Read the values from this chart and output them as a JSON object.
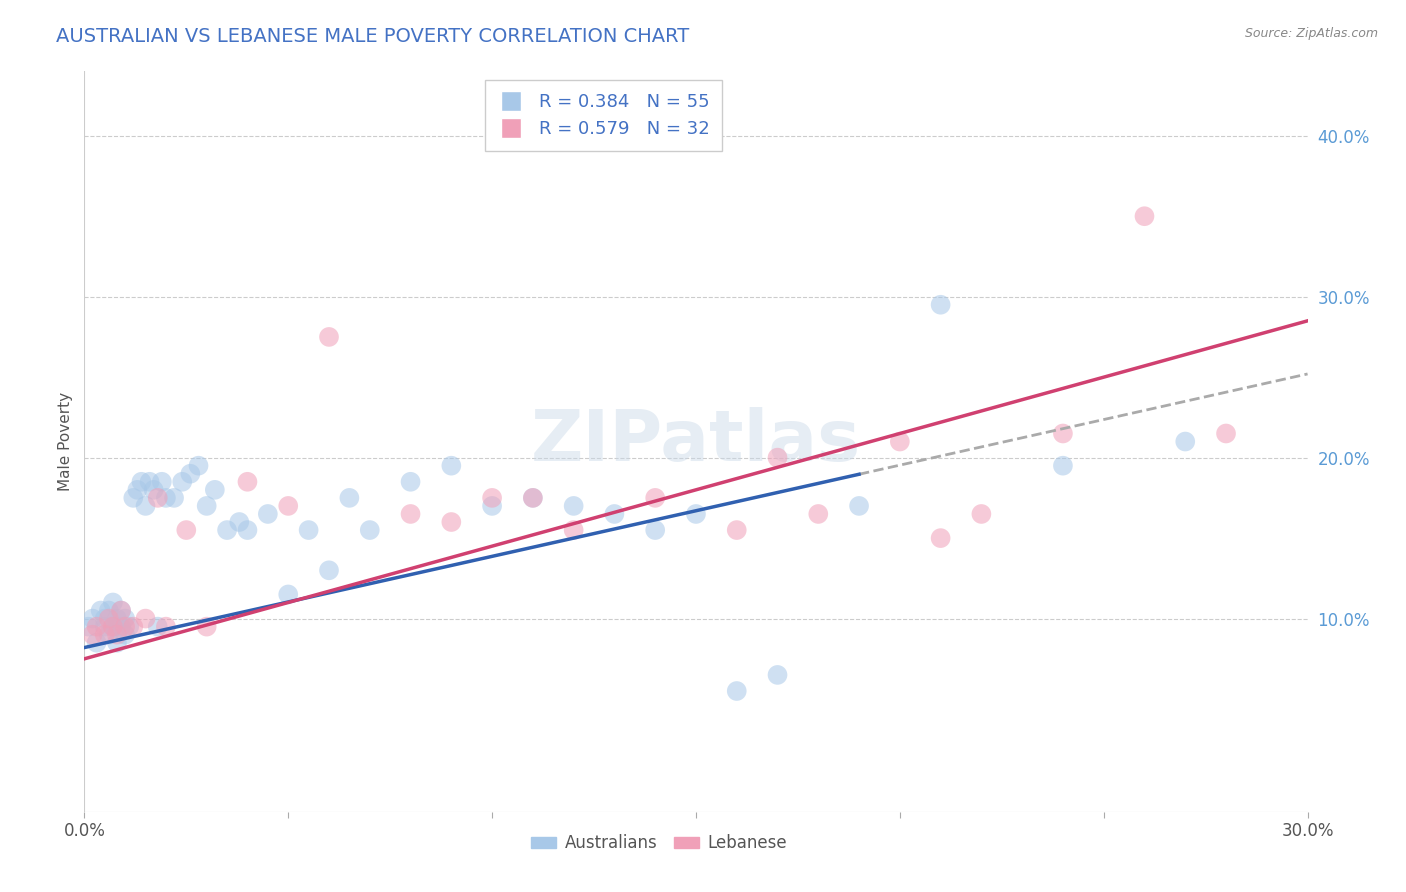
{
  "title": "AUSTRALIAN VS LEBANESE MALE POVERTY CORRELATION CHART",
  "source": "Source: ZipAtlas.com",
  "ylabel": "Male Poverty",
  "xlim": [
    0.0,
    0.3
  ],
  "ylim": [
    -0.02,
    0.44
  ],
  "yticks": [
    0.1,
    0.2,
    0.3,
    0.4
  ],
  "ytick_labels": [
    "10.0%",
    "20.0%",
    "30.0%",
    "40.0%"
  ],
  "color_australian": "#a8c8e8",
  "color_lebanese": "#f0a0b8",
  "color_aus_line": "#3060b0",
  "color_leb_line": "#d04070",
  "color_dash": "#aaaaaa",
  "background_color": "#ffffff",
  "watermark": "ZIPatlas",
  "aus_x": [
    0.001,
    0.002,
    0.003,
    0.004,
    0.005,
    0.005,
    0.006,
    0.006,
    0.007,
    0.007,
    0.008,
    0.008,
    0.009,
    0.009,
    0.01,
    0.01,
    0.011,
    0.012,
    0.013,
    0.014,
    0.015,
    0.016,
    0.017,
    0.018,
    0.019,
    0.02,
    0.022,
    0.024,
    0.026,
    0.028,
    0.03,
    0.032,
    0.035,
    0.038,
    0.04,
    0.045,
    0.05,
    0.055,
    0.06,
    0.065,
    0.07,
    0.08,
    0.09,
    0.1,
    0.11,
    0.12,
    0.13,
    0.14,
    0.15,
    0.16,
    0.17,
    0.19,
    0.21,
    0.24,
    0.27
  ],
  "aus_y": [
    0.095,
    0.1,
    0.085,
    0.105,
    0.095,
    0.1,
    0.09,
    0.105,
    0.095,
    0.11,
    0.085,
    0.1,
    0.095,
    0.105,
    0.09,
    0.1,
    0.095,
    0.175,
    0.18,
    0.185,
    0.17,
    0.185,
    0.18,
    0.095,
    0.185,
    0.175,
    0.175,
    0.185,
    0.19,
    0.195,
    0.17,
    0.18,
    0.155,
    0.16,
    0.155,
    0.165,
    0.115,
    0.155,
    0.13,
    0.175,
    0.155,
    0.185,
    0.195,
    0.17,
    0.175,
    0.17,
    0.165,
    0.155,
    0.165,
    0.055,
    0.065,
    0.17,
    0.295,
    0.195,
    0.21
  ],
  "leb_x": [
    0.002,
    0.003,
    0.005,
    0.006,
    0.007,
    0.008,
    0.009,
    0.01,
    0.012,
    0.015,
    0.018,
    0.02,
    0.025,
    0.03,
    0.04,
    0.05,
    0.06,
    0.08,
    0.09,
    0.1,
    0.11,
    0.12,
    0.14,
    0.16,
    0.17,
    0.18,
    0.2,
    0.21,
    0.22,
    0.24,
    0.26,
    0.28
  ],
  "leb_y": [
    0.09,
    0.095,
    0.09,
    0.1,
    0.095,
    0.09,
    0.105,
    0.095,
    0.095,
    0.1,
    0.175,
    0.095,
    0.155,
    0.095,
    0.185,
    0.17,
    0.275,
    0.165,
    0.16,
    0.175,
    0.175,
    0.155,
    0.175,
    0.155,
    0.2,
    0.165,
    0.21,
    0.15,
    0.165,
    0.215,
    0.35,
    0.215
  ]
}
